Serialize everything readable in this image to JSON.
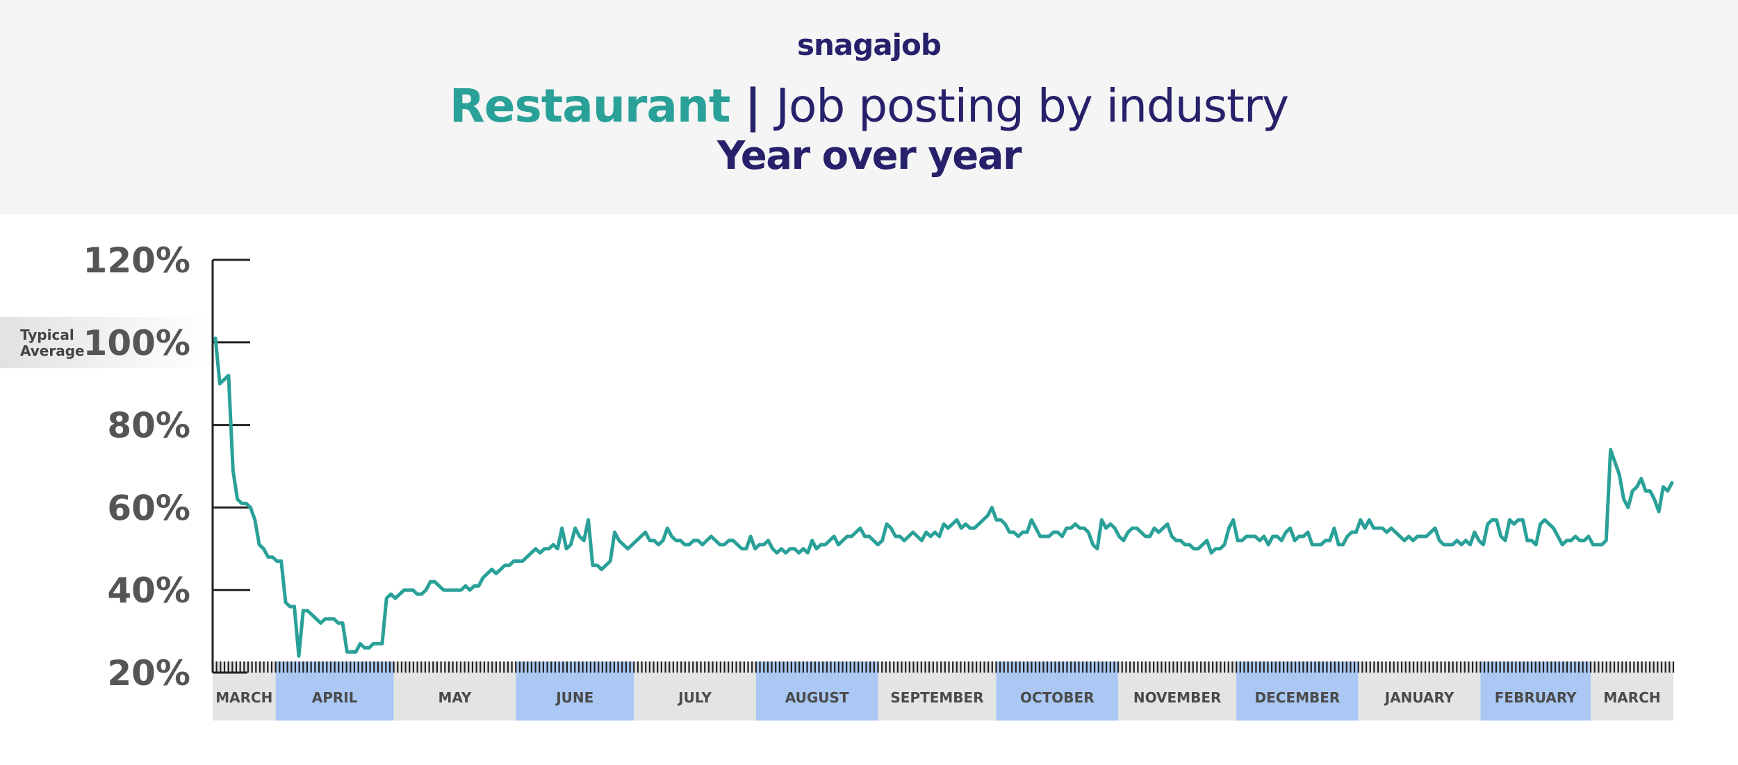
{
  "header": {
    "brand": "snagajob",
    "industry": "Restaurant",
    "separator": "|",
    "description": "Job posting by industry",
    "subtitle": "Year over year"
  },
  "chart_data": {
    "type": "line",
    "ylim": [
      20,
      120
    ],
    "yticks": [
      "20%",
      "40%",
      "60%",
      "80%",
      "100%",
      "120%"
    ],
    "reference_line": {
      "value": 100,
      "label_line1": "Typical",
      "label_line2": "Average"
    },
    "months": [
      "MARCH",
      "APRIL",
      "MAY",
      "JUNE",
      "JULY",
      "AUGUST",
      "SEPTEMBER",
      "OCTOBER",
      "NOVEMBER",
      "DECEMBER",
      "JANUARY",
      "FEBRUARY",
      "MARCH"
    ],
    "month_days": [
      16,
      30,
      31,
      30,
      31,
      31,
      30,
      31,
      30,
      31,
      31,
      28,
      21
    ],
    "highlighted_months": [
      1,
      3,
      5,
      7,
      9,
      11
    ],
    "colors": {
      "line": "#2aa198",
      "band_highlight": "#aac8f3",
      "band_plain": "#e4e4e4",
      "axis": "#222222"
    },
    "series": [
      {
        "values": [
          101,
          90,
          91,
          92,
          69,
          62,
          61,
          61,
          60,
          57,
          51,
          50,
          48,
          48,
          47,
          47,
          37,
          36,
          36,
          24,
          35,
          35,
          34,
          33,
          32,
          33,
          33,
          33,
          32,
          32,
          25,
          25,
          25,
          27,
          26,
          26,
          27,
          27,
          27,
          38,
          39,
          38,
          39,
          40,
          40,
          40,
          39,
          39,
          40,
          42,
          42,
          41,
          40,
          40,
          40,
          40,
          40,
          41,
          40,
          41,
          41,
          43,
          44,
          45,
          44,
          45,
          46,
          46,
          47,
          47,
          47,
          48,
          49,
          50,
          49,
          50,
          50,
          51,
          50,
          55,
          50,
          51,
          55,
          53,
          52,
          57,
          46,
          46,
          45,
          46,
          47,
          54,
          52,
          51,
          50,
          51,
          52,
          53,
          54,
          52,
          52,
          51,
          52,
          55,
          53,
          52,
          52,
          51,
          51,
          52,
          52,
          51,
          52,
          53,
          52,
          51,
          51,
          52,
          52,
          51,
          50,
          50,
          53,
          50,
          51,
          51,
          52,
          50,
          49,
          50,
          49,
          50,
          50,
          49,
          50,
          49,
          52,
          50,
          51,
          51,
          52,
          53,
          51,
          52,
          53,
          53,
          54,
          55,
          53,
          53,
          52,
          51,
          52,
          56,
          55,
          53,
          53,
          52,
          53,
          54,
          53,
          52,
          54,
          53,
          54,
          53,
          56,
          55,
          56,
          57,
          55,
          56,
          55,
          55,
          56,
          57,
          58,
          60,
          57,
          57,
          56,
          54,
          54,
          53,
          54,
          54,
          57,
          55,
          53,
          53,
          53,
          54,
          54,
          53,
          55,
          55,
          56,
          55,
          55,
          54,
          51,
          50,
          57,
          55,
          56,
          55,
          53,
          52,
          54,
          55,
          55,
          54,
          53,
          53,
          55,
          54,
          55,
          56,
          53,
          52,
          52,
          51,
          51,
          50,
          50,
          51,
          52,
          49,
          50,
          50,
          51,
          55,
          57,
          52,
          52,
          53,
          53,
          53,
          52,
          53,
          51,
          53,
          53,
          52,
          54,
          55,
          52,
          53,
          53,
          54,
          51,
          51,
          51,
          52,
          52,
          55,
          51,
          51,
          53,
          54,
          54,
          57,
          55,
          57,
          55,
          55,
          55,
          54,
          55,
          54,
          53,
          52,
          53,
          52,
          53,
          53,
          53,
          54,
          55,
          52,
          51,
          51,
          51,
          52,
          51,
          52,
          51,
          54,
          52,
          51,
          56,
          57,
          57,
          53,
          52,
          57,
          56,
          57,
          57,
          52,
          52,
          51,
          56,
          57,
          56,
          55,
          53,
          51,
          52,
          52,
          53,
          52,
          52,
          53,
          51,
          51,
          51,
          52,
          74,
          71,
          68,
          62,
          60,
          64,
          65,
          67,
          64,
          64,
          62,
          59,
          65,
          64,
          66
        ]
      }
    ]
  }
}
